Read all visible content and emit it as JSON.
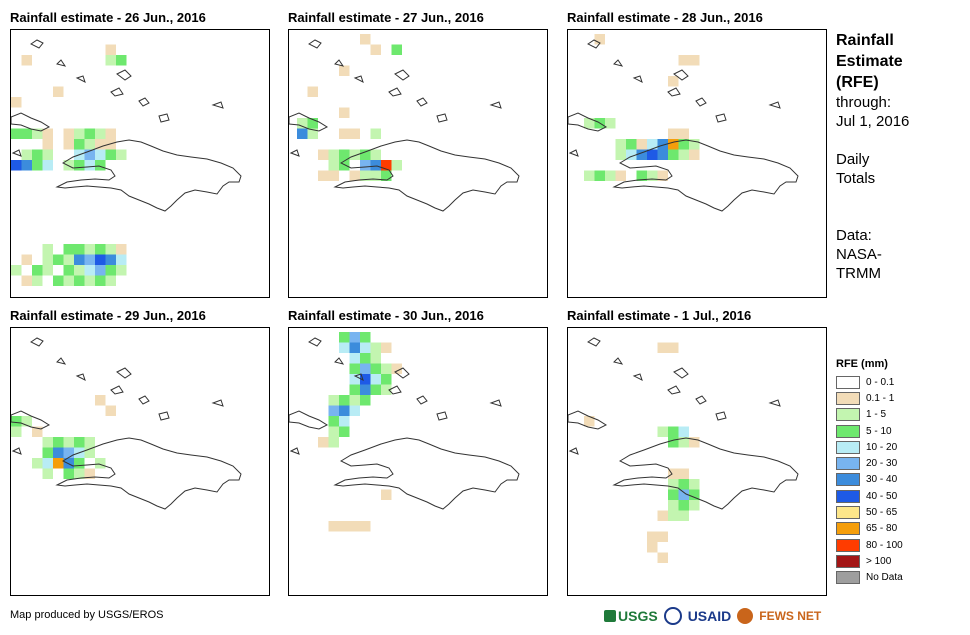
{
  "panels": [
    {
      "title": "Rainfall estimate - 26 Jun., 2016"
    },
    {
      "title": "Rainfall estimate - 27 Jun., 2016"
    },
    {
      "title": "Rainfall estimate - 28 Jun., 2016"
    },
    {
      "title": "Rainfall estimate - 29 Jun., 2016"
    },
    {
      "title": "Rainfall estimate - 30 Jun., 2016"
    },
    {
      "title": "Rainfall estimate - 1 Jul., 2016"
    }
  ],
  "side": {
    "title_lines": [
      "Rainfall",
      "Estimate",
      "(RFE)"
    ],
    "through_label": "through:",
    "through_date": "Jul 1, 2016",
    "daily_lines": [
      "Daily",
      "Totals"
    ],
    "data_lines": [
      "Data:",
      "NASA-",
      "TRMM"
    ]
  },
  "legend": {
    "title": "RFE (mm)",
    "items": [
      {
        "label": "0 - 0.1",
        "color": "#ffffff"
      },
      {
        "label": "0.1 - 1",
        "color": "#f2dcb8"
      },
      {
        "label": "1 - 5",
        "color": "#c3f5b0"
      },
      {
        "label": "5 - 10",
        "color": "#6ee86e"
      },
      {
        "label": "10 - 20",
        "color": "#b8ecf5"
      },
      {
        "label": "20 - 30",
        "color": "#78b4f0"
      },
      {
        "label": "30 - 40",
        "color": "#3c8cdc"
      },
      {
        "label": "40 - 50",
        "color": "#1e5ae6"
      },
      {
        "label": "50 - 65",
        "color": "#fde68a"
      },
      {
        "label": "65 - 80",
        "color": "#f59e0b"
      },
      {
        "label": "80 - 100",
        "color": "#ff3c00"
      },
      {
        "label": "> 100",
        "color": "#a31515"
      },
      {
        "label": "No Data",
        "color": "#9e9e9e"
      }
    ]
  },
  "footer": {
    "credit": "Map produced by USGS/EROS"
  },
  "logos": {
    "usgs": "USGS",
    "usaid": "USAID",
    "fewsnet": "FEWS NET"
  },
  "rain_cells": [
    [
      [
        1,
        2,
        1
      ],
      [
        9,
        1,
        1
      ],
      [
        9,
        2,
        2
      ],
      [
        10,
        2,
        3
      ],
      [
        4,
        5,
        1
      ],
      [
        0,
        6,
        1
      ],
      [
        0,
        9,
        3
      ],
      [
        1,
        9,
        3
      ],
      [
        2,
        9,
        2
      ],
      [
        3,
        9,
        1
      ],
      [
        5,
        9,
        1
      ],
      [
        6,
        9,
        2
      ],
      [
        7,
        9,
        3
      ],
      [
        8,
        9,
        2
      ],
      [
        9,
        9,
        1
      ],
      [
        3,
        10,
        1
      ],
      [
        5,
        10,
        1
      ],
      [
        6,
        10,
        3
      ],
      [
        7,
        10,
        2
      ],
      [
        8,
        10,
        1
      ],
      [
        9,
        10,
        1
      ],
      [
        1,
        11,
        2
      ],
      [
        2,
        11,
        3
      ],
      [
        3,
        11,
        2
      ],
      [
        6,
        11,
        4
      ],
      [
        7,
        11,
        5
      ],
      [
        8,
        11,
        4
      ],
      [
        9,
        11,
        3
      ],
      [
        10,
        11,
        2
      ],
      [
        0,
        12,
        7
      ],
      [
        1,
        12,
        6
      ],
      [
        2,
        12,
        3
      ],
      [
        3,
        12,
        4
      ],
      [
        5,
        12,
        2
      ],
      [
        6,
        12,
        3
      ],
      [
        7,
        12,
        4
      ],
      [
        8,
        12,
        3
      ],
      [
        3,
        20,
        2
      ],
      [
        5,
        20,
        3
      ],
      [
        6,
        20,
        3
      ],
      [
        7,
        20,
        2
      ],
      [
        8,
        20,
        3
      ],
      [
        9,
        20,
        2
      ],
      [
        10,
        20,
        1
      ],
      [
        1,
        21,
        1
      ],
      [
        3,
        21,
        2
      ],
      [
        4,
        21,
        3
      ],
      [
        5,
        21,
        2
      ],
      [
        6,
        21,
        6
      ],
      [
        7,
        21,
        5
      ],
      [
        8,
        21,
        7
      ],
      [
        9,
        21,
        6
      ],
      [
        10,
        21,
        4
      ],
      [
        0,
        22,
        2
      ],
      [
        2,
        22,
        3
      ],
      [
        3,
        22,
        2
      ],
      [
        5,
        22,
        3
      ],
      [
        6,
        22,
        2
      ],
      [
        7,
        22,
        4
      ],
      [
        8,
        22,
        5
      ],
      [
        9,
        22,
        3
      ],
      [
        10,
        22,
        2
      ],
      [
        1,
        23,
        1
      ],
      [
        2,
        23,
        2
      ],
      [
        4,
        23,
        3
      ],
      [
        5,
        23,
        2
      ],
      [
        6,
        23,
        3
      ],
      [
        7,
        23,
        2
      ],
      [
        8,
        23,
        3
      ],
      [
        9,
        23,
        2
      ]
    ],
    [
      [
        6,
        0,
        1
      ],
      [
        7,
        1,
        1
      ],
      [
        9,
        1,
        3
      ],
      [
        4,
        3,
        1
      ],
      [
        1,
        5,
        1
      ],
      [
        0,
        8,
        2
      ],
      [
        1,
        8,
        3
      ],
      [
        0,
        9,
        6
      ],
      [
        1,
        9,
        2
      ],
      [
        4,
        9,
        1
      ],
      [
        5,
        9,
        1
      ],
      [
        7,
        9,
        2
      ],
      [
        2,
        11,
        1
      ],
      [
        3,
        11,
        2
      ],
      [
        4,
        11,
        3
      ],
      [
        5,
        11,
        2
      ],
      [
        6,
        11,
        3
      ],
      [
        7,
        11,
        2
      ],
      [
        3,
        12,
        2
      ],
      [
        4,
        12,
        3
      ],
      [
        6,
        12,
        5
      ],
      [
        7,
        12,
        6
      ],
      [
        8,
        12,
        10
      ],
      [
        9,
        12,
        2
      ],
      [
        2,
        13,
        1
      ],
      [
        3,
        13,
        1
      ],
      [
        5,
        13,
        1
      ],
      [
        6,
        13,
        2
      ],
      [
        7,
        13,
        2
      ],
      [
        8,
        13,
        3
      ],
      [
        4,
        7,
        1
      ]
    ],
    [
      [
        1,
        0,
        1
      ],
      [
        9,
        2,
        1
      ],
      [
        10,
        2,
        1
      ],
      [
        8,
        4,
        1
      ],
      [
        0,
        8,
        2
      ],
      [
        1,
        8,
        3
      ],
      [
        2,
        8,
        2
      ],
      [
        8,
        9,
        1
      ],
      [
        9,
        9,
        1
      ],
      [
        3,
        10,
        2
      ],
      [
        4,
        10,
        3
      ],
      [
        5,
        10,
        1
      ],
      [
        6,
        10,
        4
      ],
      [
        7,
        10,
        6
      ],
      [
        8,
        10,
        9
      ],
      [
        9,
        10,
        3
      ],
      [
        10,
        10,
        2
      ],
      [
        3,
        11,
        2
      ],
      [
        4,
        11,
        4
      ],
      [
        5,
        11,
        6
      ],
      [
        6,
        11,
        7
      ],
      [
        7,
        11,
        6
      ],
      [
        8,
        11,
        3
      ],
      [
        9,
        11,
        2
      ],
      [
        10,
        11,
        1
      ],
      [
        0,
        13,
        2
      ],
      [
        1,
        13,
        3
      ],
      [
        2,
        13,
        2
      ],
      [
        3,
        13,
        1
      ],
      [
        5,
        13,
        3
      ],
      [
        6,
        13,
        2
      ],
      [
        7,
        13,
        1
      ]
    ],
    [
      [
        0,
        8,
        3
      ],
      [
        1,
        8,
        2
      ],
      [
        0,
        9,
        2
      ],
      [
        2,
        9,
        1
      ],
      [
        3,
        10,
        2
      ],
      [
        4,
        10,
        3
      ],
      [
        5,
        10,
        2
      ],
      [
        6,
        10,
        3
      ],
      [
        7,
        10,
        2
      ],
      [
        3,
        11,
        3
      ],
      [
        4,
        11,
        6
      ],
      [
        5,
        11,
        5
      ],
      [
        6,
        11,
        4
      ],
      [
        7,
        11,
        2
      ],
      [
        2,
        12,
        2
      ],
      [
        3,
        12,
        4
      ],
      [
        4,
        12,
        9
      ],
      [
        5,
        12,
        6
      ],
      [
        6,
        12,
        3
      ],
      [
        8,
        12,
        2
      ],
      [
        3,
        13,
        2
      ],
      [
        5,
        13,
        3
      ],
      [
        6,
        13,
        2
      ],
      [
        7,
        13,
        1
      ],
      [
        8,
        6,
        1
      ],
      [
        9,
        7,
        1
      ]
    ],
    [
      [
        4,
        0,
        3
      ],
      [
        5,
        0,
        5
      ],
      [
        6,
        0,
        3
      ],
      [
        4,
        1,
        4
      ],
      [
        5,
        1,
        6
      ],
      [
        6,
        1,
        4
      ],
      [
        7,
        1,
        2
      ],
      [
        8,
        1,
        1
      ],
      [
        5,
        2,
        4
      ],
      [
        6,
        2,
        3
      ],
      [
        7,
        2,
        2
      ],
      [
        5,
        3,
        3
      ],
      [
        6,
        3,
        5
      ],
      [
        7,
        3,
        3
      ],
      [
        8,
        3,
        2
      ],
      [
        9,
        3,
        1
      ],
      [
        5,
        4,
        4
      ],
      [
        6,
        4,
        7
      ],
      [
        7,
        4,
        4
      ],
      [
        8,
        4,
        3
      ],
      [
        5,
        5,
        3
      ],
      [
        6,
        5,
        6
      ],
      [
        7,
        5,
        3
      ],
      [
        8,
        5,
        2
      ],
      [
        3,
        6,
        2
      ],
      [
        4,
        6,
        3
      ],
      [
        5,
        6,
        2
      ],
      [
        6,
        6,
        3
      ],
      [
        3,
        7,
        5
      ],
      [
        4,
        7,
        6
      ],
      [
        5,
        7,
        4
      ],
      [
        3,
        8,
        3
      ],
      [
        4,
        8,
        4
      ],
      [
        3,
        9,
        2
      ],
      [
        4,
        9,
        3
      ],
      [
        2,
        10,
        1
      ],
      [
        3,
        10,
        2
      ],
      [
        3,
        18,
        1
      ],
      [
        4,
        18,
        1
      ],
      [
        5,
        18,
        1
      ],
      [
        6,
        18,
        1
      ],
      [
        8,
        15,
        1
      ]
    ],
    [
      [
        7,
        1,
        1
      ],
      [
        8,
        1,
        1
      ],
      [
        0,
        8,
        1
      ],
      [
        7,
        9,
        2
      ],
      [
        8,
        9,
        3
      ],
      [
        9,
        9,
        4
      ],
      [
        8,
        10,
        3
      ],
      [
        9,
        10,
        2
      ],
      [
        10,
        10,
        1
      ],
      [
        8,
        13,
        1
      ],
      [
        9,
        13,
        1
      ],
      [
        8,
        14,
        2
      ],
      [
        9,
        14,
        3
      ],
      [
        10,
        14,
        2
      ],
      [
        8,
        15,
        3
      ],
      [
        9,
        15,
        5
      ],
      [
        10,
        15,
        3
      ],
      [
        8,
        16,
        2
      ],
      [
        9,
        16,
        3
      ],
      [
        10,
        16,
        2
      ],
      [
        7,
        17,
        1
      ],
      [
        8,
        17,
        2
      ],
      [
        9,
        17,
        2
      ],
      [
        6,
        19,
        1
      ],
      [
        7,
        19,
        1
      ],
      [
        6,
        20,
        1
      ],
      [
        7,
        21,
        1
      ]
    ]
  ]
}
